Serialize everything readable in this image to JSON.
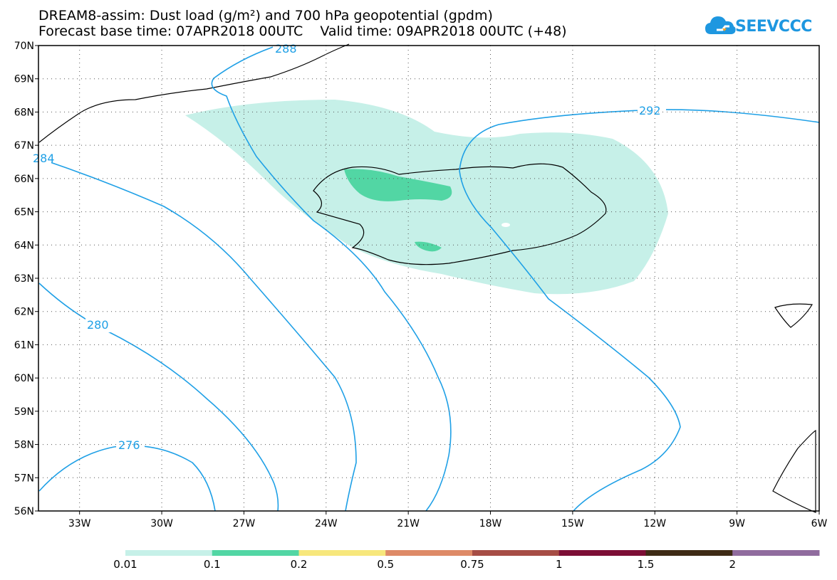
{
  "title": {
    "line1": "DREAM8-assim: Dust load (g/m²) and 700 hPa geopotential (gpdm)",
    "line2": "Forecast base time: 07APR2018 00UTC    Valid time: 09APR2018 00UTC (+48)"
  },
  "logo": {
    "text": "SEEVCCC",
    "icon": "cloud-icon",
    "color": "#1e97e0"
  },
  "axes": {
    "lat_labels": [
      "70N",
      "69N",
      "68N",
      "67N",
      "66N",
      "65N",
      "64N",
      "63N",
      "62N",
      "61N",
      "60N",
      "59N",
      "58N",
      "57N",
      "56N"
    ],
    "lon_labels": [
      "33W",
      "30W",
      "27W",
      "24W",
      "21W",
      "18W",
      "15W",
      "12W",
      "9W",
      "6W"
    ],
    "lat_range": [
      56,
      70
    ],
    "lon_range": [
      -34.5,
      -6
    ],
    "grid": "dotted"
  },
  "contours": {
    "color": "#1fa0e6",
    "labels": [
      "288",
      "292",
      "284",
      "280",
      "276"
    ]
  },
  "dust_fill": {
    "low_color": "#c6f0e8",
    "mid_color": "#52d6a4"
  },
  "colorbar": {
    "colors": [
      "#c6f0e8",
      "#52d6a4",
      "#f7e77c",
      "#de8a67",
      "#a64d45",
      "#7c0e35",
      "#3e2b15",
      "#906c9e"
    ],
    "labels": [
      "0.01",
      "0.1",
      "0.2",
      "0.5",
      "0.75",
      "1",
      "1.5",
      "2"
    ]
  }
}
